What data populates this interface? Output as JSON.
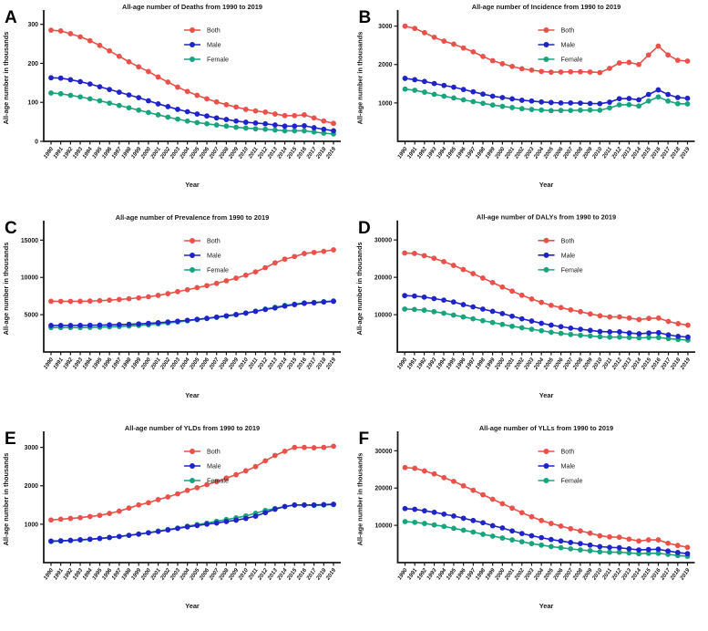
{
  "figure": {
    "background": "#ffffff",
    "axis_color": "#1a1a1a",
    "series_colors": {
      "Both": "#e8524b",
      "Male": "#2023c8",
      "Female": "#19a47d"
    },
    "legend_labels": [
      "Both",
      "Male",
      "Female"
    ]
  },
  "chart_data": [
    {
      "type": "line",
      "panel_label": "A",
      "title": "All-age number of Deaths from 1990 to 2019",
      "xlabel": "Year",
      "ylabel": "All-age number in thousands",
      "legend_position": "inside-top-center",
      "grid": false,
      "ylim": [
        0,
        325
      ],
      "yticks": [
        0,
        100,
        200,
        300
      ],
      "categories": [
        1990,
        1991,
        1992,
        1993,
        1994,
        1995,
        1996,
        1997,
        1998,
        1999,
        2000,
        2001,
        2002,
        2003,
        2004,
        2005,
        2006,
        2007,
        2008,
        2009,
        2010,
        2011,
        2012,
        2013,
        2014,
        2015,
        2016,
        2017,
        2018,
        2019
      ],
      "series": [
        {
          "name": "Both",
          "color": "#e8524b",
          "values": [
            285,
            283,
            276,
            268,
            258,
            246,
            232,
            218,
            204,
            191,
            179,
            165,
            152,
            139,
            128,
            118,
            109,
            101,
            94,
            88,
            82,
            78,
            75,
            70,
            66,
            66,
            68,
            60,
            52,
            46
          ]
        },
        {
          "name": "Male",
          "color": "#2023c8",
          "values": [
            163,
            162,
            158,
            153,
            147,
            140,
            133,
            126,
            119,
            112,
            104,
            96,
            89,
            82,
            76,
            70,
            65,
            60,
            56,
            52,
            49,
            47,
            45,
            42,
            39,
            39,
            40,
            35,
            31,
            27
          ]
        },
        {
          "name": "Female",
          "color": "#19a47d",
          "values": [
            124,
            122,
            118,
            114,
            109,
            104,
            98,
            92,
            86,
            80,
            74,
            68,
            62,
            57,
            52,
            48,
            45,
            42,
            39,
            36,
            34,
            32,
            31,
            29,
            27,
            27,
            27,
            24,
            21,
            19
          ]
        }
      ]
    },
    {
      "type": "line",
      "panel_label": "B",
      "title": "All-age number of Incidence from 1990 to 2019",
      "xlabel": "Year",
      "ylabel": "All-age number in thousands",
      "legend_position": "inside-top-center",
      "grid": false,
      "ylim": [
        0,
        3300
      ],
      "yticks": [
        1000,
        2000,
        3000
      ],
      "categories": [
        1990,
        1991,
        1992,
        1993,
        1994,
        1995,
        1996,
        1997,
        1998,
        1999,
        2000,
        2001,
        2002,
        2003,
        2004,
        2005,
        2006,
        2007,
        2008,
        2009,
        2010,
        2011,
        2012,
        2013,
        2014,
        2015,
        2016,
        2017,
        2018,
        2019
      ],
      "series": [
        {
          "name": "Both",
          "color": "#e8524b",
          "values": [
            3000,
            2940,
            2830,
            2710,
            2610,
            2530,
            2430,
            2330,
            2210,
            2100,
            2020,
            1950,
            1890,
            1855,
            1820,
            1800,
            1805,
            1810,
            1810,
            1805,
            1790,
            1900,
            2040,
            2055,
            2000,
            2250,
            2480,
            2250,
            2110,
            2090
          ]
        },
        {
          "name": "Male",
          "color": "#2023c8",
          "values": [
            1640,
            1605,
            1560,
            1505,
            1455,
            1410,
            1350,
            1290,
            1230,
            1175,
            1140,
            1105,
            1070,
            1050,
            1025,
            1010,
            1000,
            1000,
            995,
            985,
            980,
            1020,
            1110,
            1115,
            1080,
            1220,
            1340,
            1220,
            1140,
            1120
          ]
        },
        {
          "name": "Female",
          "color": "#19a47d",
          "values": [
            1360,
            1330,
            1280,
            1225,
            1175,
            1130,
            1080,
            1035,
            990,
            945,
            910,
            880,
            850,
            830,
            815,
            800,
            805,
            805,
            810,
            815,
            810,
            870,
            950,
            955,
            920,
            1050,
            1155,
            1050,
            980,
            975
          ]
        }
      ]
    },
    {
      "type": "line",
      "panel_label": "C",
      "title": "All-age number of Prevalence from 1990 to 2019",
      "xlabel": "Year",
      "ylabel": "All-age number in thousands",
      "legend_position": "inside-top-center",
      "grid": false,
      "ylim": [
        0,
        17000
      ],
      "yticks": [
        5000,
        10000,
        15000
      ],
      "categories": [
        1990,
        1991,
        1992,
        1993,
        1994,
        1995,
        1996,
        1997,
        1998,
        1999,
        2000,
        2001,
        2002,
        2003,
        2004,
        2005,
        2006,
        2007,
        2008,
        2009,
        2010,
        2011,
        2012,
        2013,
        2014,
        2015,
        2016,
        2017,
        2018,
        2019
      ],
      "series": [
        {
          "name": "Both",
          "color": "#e8524b",
          "values": [
            6800,
            6790,
            6790,
            6800,
            6830,
            6880,
            6950,
            7040,
            7140,
            7260,
            7400,
            7590,
            7820,
            8100,
            8350,
            8630,
            8900,
            9200,
            9550,
            9900,
            10300,
            10750,
            11300,
            11950,
            12450,
            12800,
            13200,
            13350,
            13500,
            13700
          ]
        },
        {
          "name": "Male",
          "color": "#2023c8",
          "values": [
            3560,
            3555,
            3555,
            3565,
            3580,
            3600,
            3630,
            3665,
            3710,
            3765,
            3830,
            3920,
            4020,
            4130,
            4250,
            4380,
            4520,
            4680,
            4850,
            5020,
            5220,
            5450,
            5700,
            5900,
            6150,
            6350,
            6520,
            6600,
            6700,
            6800
          ]
        },
        {
          "name": "Female",
          "color": "#19a47d",
          "values": [
            3280,
            3270,
            3270,
            3280,
            3300,
            3330,
            3370,
            3420,
            3480,
            3550,
            3640,
            3760,
            3890,
            4030,
            4180,
            4330,
            4480,
            4640,
            4810,
            4990,
            5200,
            5470,
            5760,
            6000,
            6250,
            6420,
            6580,
            6650,
            6750,
            6850
          ]
        }
      ]
    },
    {
      "type": "line",
      "panel_label": "D",
      "title": "All-age number of DALYs from 1990 to 2019",
      "xlabel": "Year",
      "ylabel": "All-age number in thousands",
      "legend_position": "inside-top-center",
      "grid": false,
      "ylim": [
        0,
        34000
      ],
      "yticks": [
        10000,
        20000,
        30000
      ],
      "categories": [
        1990,
        1991,
        1992,
        1993,
        1994,
        1995,
        1996,
        1997,
        1998,
        1999,
        2000,
        2001,
        2002,
        2003,
        2004,
        2005,
        2006,
        2007,
        2008,
        2009,
        2010,
        2011,
        2012,
        2013,
        2014,
        2015,
        2016,
        2017,
        2018,
        2019
      ],
      "series": [
        {
          "name": "Both",
          "color": "#e8524b",
          "values": [
            26500,
            26400,
            25800,
            25100,
            24200,
            23200,
            22100,
            21000,
            19800,
            18600,
            17400,
            16300,
            15200,
            14200,
            13300,
            12500,
            11900,
            11300,
            10800,
            10200,
            9700,
            9400,
            9400,
            9100,
            8700,
            9000,
            9100,
            8200,
            7600,
            7200
          ]
        },
        {
          "name": "Male",
          "color": "#2023c8",
          "values": [
            15100,
            15000,
            14700,
            14300,
            13900,
            13400,
            12700,
            12100,
            11500,
            10900,
            10300,
            9600,
            8900,
            8300,
            7700,
            7200,
            6800,
            6400,
            6100,
            5800,
            5500,
            5400,
            5400,
            5100,
            4900,
            5100,
            5200,
            4600,
            4200,
            4000
          ]
        },
        {
          "name": "Female",
          "color": "#19a47d",
          "values": [
            11500,
            11400,
            11200,
            10800,
            10400,
            9900,
            9400,
            8900,
            8400,
            7900,
            7400,
            6900,
            6500,
            6100,
            5700,
            5300,
            5000,
            4700,
            4500,
            4300,
            4100,
            4000,
            4000,
            3900,
            3800,
            3900,
            3900,
            3600,
            3400,
            3200
          ]
        }
      ]
    },
    {
      "type": "line",
      "panel_label": "E",
      "title": "All-age number of YLDs from 1990 to 2019",
      "xlabel": "Year",
      "ylabel": "All-age number in thousands",
      "legend_position": "inside-top-center",
      "grid": false,
      "ylim": [
        0,
        3300
      ],
      "yticks": [
        1000,
        2000,
        3000
      ],
      "categories": [
        1990,
        1991,
        1992,
        1993,
        1994,
        1995,
        1996,
        1997,
        1998,
        1999,
        2000,
        2001,
        2002,
        2003,
        2004,
        2005,
        2006,
        2007,
        2008,
        2009,
        2010,
        2011,
        2012,
        2013,
        2014,
        2015,
        2016,
        2017,
        2018,
        2019
      ],
      "series": [
        {
          "name": "Both",
          "color": "#e8524b",
          "values": [
            1110,
            1130,
            1150,
            1170,
            1200,
            1230,
            1280,
            1340,
            1420,
            1500,
            1560,
            1640,
            1710,
            1790,
            1880,
            1950,
            2030,
            2110,
            2200,
            2290,
            2390,
            2500,
            2650,
            2790,
            2900,
            3000,
            3000,
            2990,
            3000,
            3030
          ]
        },
        {
          "name": "Male",
          "color": "#2023c8",
          "values": [
            560,
            570,
            580,
            595,
            610,
            630,
            655,
            680,
            710,
            740,
            775,
            810,
            850,
            890,
            930,
            965,
            1000,
            1030,
            1070,
            1105,
            1150,
            1210,
            1300,
            1390,
            1460,
            1500,
            1500,
            1500,
            1510,
            1520
          ]
        },
        {
          "name": "Female",
          "color": "#19a47d",
          "values": [
            550,
            560,
            575,
            590,
            605,
            625,
            650,
            680,
            710,
            745,
            780,
            820,
            860,
            900,
            950,
            990,
            1030,
            1075,
            1120,
            1165,
            1215,
            1285,
            1360,
            1410,
            1460,
            1500,
            1500,
            1490,
            1500,
            1510
          ]
        }
      ]
    },
    {
      "type": "line",
      "panel_label": "F",
      "title": "All-age number of YLLs from 1990 to 2019",
      "xlabel": "Year",
      "ylabel": "All-age number in thousands",
      "legend_position": "inside-top-center",
      "grid": false,
      "ylim": [
        0,
        34000
      ],
      "yticks": [
        10000,
        20000,
        30000
      ],
      "categories": [
        1990,
        1991,
        1992,
        1993,
        1994,
        1995,
        1996,
        1997,
        1998,
        1999,
        2000,
        2001,
        2002,
        2003,
        2004,
        2005,
        2006,
        2007,
        2008,
        2009,
        2010,
        2011,
        2012,
        2013,
        2014,
        2015,
        2016,
        2017,
        2018,
        2019
      ],
      "series": [
        {
          "name": "Both",
          "color": "#e8524b",
          "values": [
            25500,
            25300,
            24600,
            23800,
            22800,
            21800,
            20600,
            19400,
            18200,
            17000,
            15800,
            14600,
            13400,
            12300,
            11300,
            10500,
            9800,
            9100,
            8500,
            7900,
            7200,
            6900,
            6800,
            6300,
            5800,
            6100,
            6100,
            5200,
            4600,
            4100
          ]
        },
        {
          "name": "Male",
          "color": "#2023c8",
          "values": [
            14500,
            14300,
            13900,
            13500,
            13000,
            12500,
            11900,
            11300,
            10700,
            9900,
            9300,
            8500,
            7800,
            7200,
            6700,
            6200,
            5800,
            5400,
            5100,
            4700,
            4300,
            4100,
            4000,
            3700,
            3400,
            3500,
            3600,
            3100,
            2700,
            2400
          ]
        },
        {
          "name": "Female",
          "color": "#19a47d",
          "values": [
            11000,
            10800,
            10500,
            10100,
            9700,
            9200,
            8700,
            8200,
            7600,
            7100,
            6600,
            6100,
            5600,
            5100,
            4700,
            4300,
            4000,
            3700,
            3400,
            3200,
            2900,
            2800,
            2800,
            2600,
            2400,
            2500,
            2500,
            2200,
            1900,
            1700
          ]
        }
      ]
    }
  ]
}
